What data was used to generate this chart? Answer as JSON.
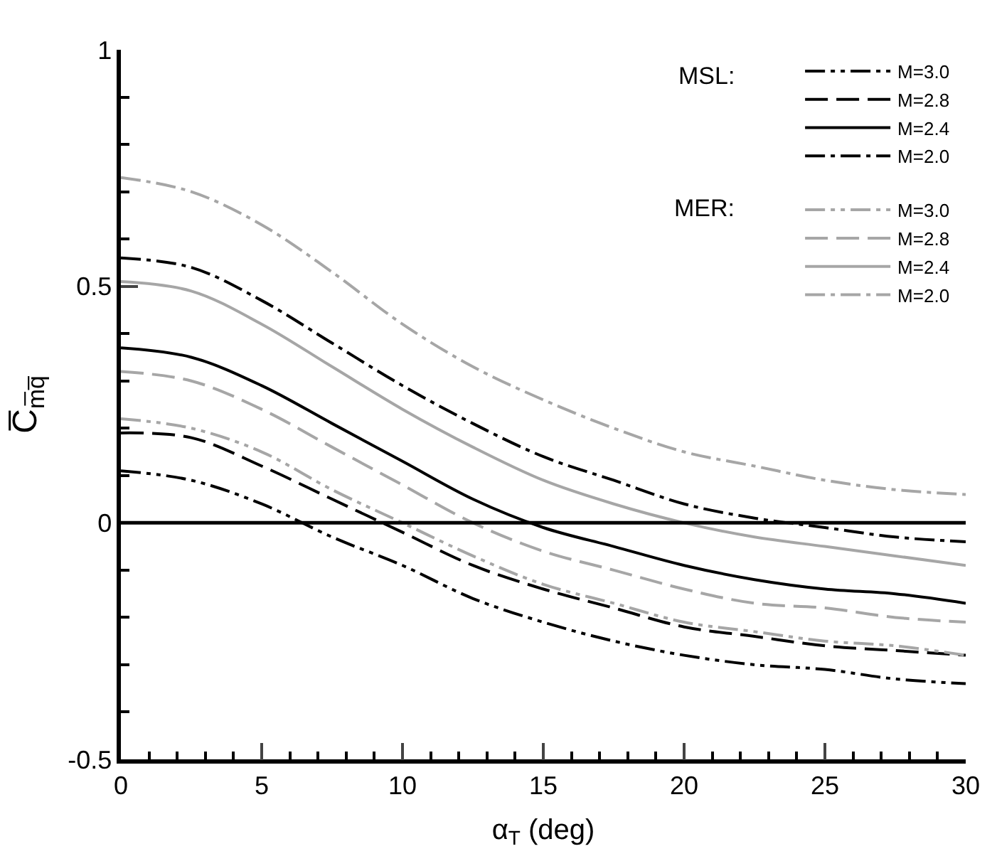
{
  "chart_data": {
    "type": "line",
    "xlabel": "α$_{T}$ (deg)",
    "ylabel": "C̅$_{m̅q̅}$",
    "x": [
      0,
      2.5,
      5,
      7.5,
      10,
      12.5,
      15,
      17.5,
      20,
      22.5,
      25,
      27.5,
      30
    ],
    "xlim": [
      0,
      30
    ],
    "xticks": [
      0,
      5,
      10,
      15,
      20,
      25,
      30
    ],
    "ylim": [
      -0.5,
      1
    ],
    "yticks": [
      -0.5,
      0,
      0.5,
      1
    ],
    "legend": "top right",
    "marker": "none",
    "annotations": [
      "MSL:",
      "MER:"
    ],
    "ref_lines": [
      {
        "axis": "y",
        "value": 0,
        "color": "#000000"
      }
    ],
    "series": [
      {
        "name": "M=3.0",
        "color": "#000000",
        "line_style": "dashdotdot",
        "values": [
          0.11,
          0.09,
          0.04,
          -0.03,
          -0.09,
          -0.16,
          -0.21,
          -0.25,
          -0.28,
          -0.3,
          -0.31,
          -0.33,
          -0.34
        ]
      },
      {
        "name": "M=2.8",
        "color": "#000000",
        "line_style": "dashed",
        "values": [
          0.19,
          0.18,
          0.12,
          0.05,
          -0.02,
          -0.09,
          -0.14,
          -0.18,
          -0.22,
          -0.24,
          -0.26,
          -0.27,
          -0.28
        ]
      },
      {
        "name": "M=2.4",
        "color": "#000000",
        "line_style": "solid",
        "values": [
          0.37,
          0.35,
          0.29,
          0.21,
          0.13,
          0.05,
          -0.01,
          -0.05,
          -0.09,
          -0.12,
          -0.14,
          -0.15,
          -0.17
        ]
      },
      {
        "name": "M=2.0",
        "color": "#000000",
        "line_style": "dashdot",
        "values": [
          0.56,
          0.54,
          0.47,
          0.38,
          0.29,
          0.21,
          0.14,
          0.09,
          0.04,
          0.01,
          -0.01,
          -0.03,
          -0.04
        ]
      },
      {
        "name": "M=3.0",
        "color": "#a6a6a6",
        "line_style": "dashdotdot",
        "values": [
          0.22,
          0.2,
          0.15,
          0.07,
          0.0,
          -0.07,
          -0.13,
          -0.17,
          -0.21,
          -0.23,
          -0.25,
          -0.26,
          -0.28
        ]
      },
      {
        "name": "M=2.8",
        "color": "#a6a6a6",
        "line_style": "dashed",
        "values": [
          0.32,
          0.3,
          0.24,
          0.16,
          0.08,
          0.0,
          -0.06,
          -0.1,
          -0.14,
          -0.17,
          -0.18,
          -0.2,
          -0.21
        ]
      },
      {
        "name": "M=2.4",
        "color": "#a6a6a6",
        "line_style": "solid",
        "values": [
          0.51,
          0.49,
          0.42,
          0.33,
          0.24,
          0.16,
          0.09,
          0.04,
          0.0,
          -0.03,
          -0.05,
          -0.07,
          -0.09
        ]
      },
      {
        "name": "M=2.0",
        "color": "#a6a6a6",
        "line_style": "dashdot",
        "values": [
          0.73,
          0.7,
          0.63,
          0.53,
          0.42,
          0.33,
          0.26,
          0.2,
          0.15,
          0.12,
          0.09,
          0.07,
          0.06
        ]
      }
    ]
  }
}
